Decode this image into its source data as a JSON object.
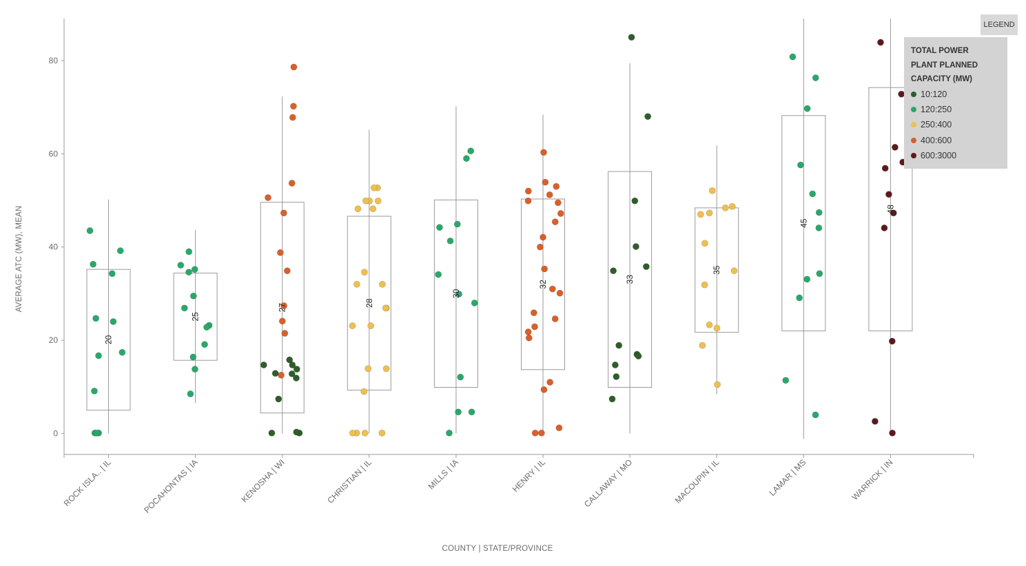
{
  "chart_data": {
    "type": "scatter",
    "subtype": "box-plot-with-jittered-points",
    "xlabel": "COUNTY | STATE/PROVINCE",
    "ylabel": "AVERAGE ATC (MW), MEAN",
    "ylim": [
      -4.5,
      89
    ],
    "yticks": [
      0,
      20,
      40,
      60,
      80
    ],
    "grid": false,
    "legend": {
      "button_label": "LEGEND",
      "title": "TOTAL POWER PLANT PLANNED CAPACITY (MW)",
      "placement": "top-right",
      "items": [
        {
          "key": "10:120",
          "label": "10:120",
          "color": "#2f5e2a"
        },
        {
          "key": "120:250",
          "label": "120:250",
          "color": "#2aa86b"
        },
        {
          "key": "250:400",
          "label": "250:400",
          "color": "#efc04f"
        },
        {
          "key": "400:600",
          "label": "400:600",
          "color": "#d9602a"
        },
        {
          "key": "600:3000",
          "label": "600:3000",
          "color": "#5c1a1f"
        }
      ]
    },
    "categories": [
      {
        "label": "ROCK ISLA.. | IL",
        "mean": "20",
        "box": [
          5,
          35.2
        ],
        "whisker": [
          0,
          50.2
        ],
        "points": [
          {
            "y": 43.5,
            "c": "120:250"
          },
          {
            "y": 39.2,
            "c": "120:250"
          },
          {
            "y": 36.3,
            "c": "120:250"
          },
          {
            "y": 34.3,
            "c": "120:250"
          },
          {
            "y": 24.7,
            "c": "120:250"
          },
          {
            "y": 24,
            "c": "120:250"
          },
          {
            "y": 17.4,
            "c": "120:250"
          },
          {
            "y": 16.7,
            "c": "120:250"
          },
          {
            "y": 9.1,
            "c": "120:250"
          },
          {
            "y": 0.1,
            "c": "120:250"
          },
          {
            "y": 0.1,
            "c": "120:250"
          },
          {
            "y": 0.1,
            "c": "120:250"
          }
        ]
      },
      {
        "label": "POCAHONTAS | IA",
        "mean": "25",
        "box": [
          15.7,
          34.4
        ],
        "whisker": [
          6.5,
          43.7
        ],
        "points": [
          {
            "y": 39,
            "c": "120:250"
          },
          {
            "y": 36.1,
            "c": "120:250"
          },
          {
            "y": 35.2,
            "c": "120:250"
          },
          {
            "y": 34.6,
            "c": "120:250"
          },
          {
            "y": 29.5,
            "c": "120:250"
          },
          {
            "y": 26.9,
            "c": "120:250"
          },
          {
            "y": 23.2,
            "c": "120:250"
          },
          {
            "y": 22.8,
            "c": "120:250"
          },
          {
            "y": 19.1,
            "c": "120:250"
          },
          {
            "y": 16.4,
            "c": "120:250"
          },
          {
            "y": 13.8,
            "c": "120:250"
          },
          {
            "y": 8.5,
            "c": "120:250"
          }
        ]
      },
      {
        "label": "KENOSHA | WI",
        "mean": "27",
        "box": [
          4.4,
          49.6
        ],
        "whisker": [
          0,
          72.3
        ],
        "points": [
          {
            "y": 78.6,
            "c": "400:600"
          },
          {
            "y": 70.2,
            "c": "400:600"
          },
          {
            "y": 67.8,
            "c": "400:600"
          },
          {
            "y": 53.7,
            "c": "400:600"
          },
          {
            "y": 50.6,
            "c": "400:600"
          },
          {
            "y": 47.3,
            "c": "400:600"
          },
          {
            "y": 38.8,
            "c": "400:600"
          },
          {
            "y": 34.9,
            "c": "400:600"
          },
          {
            "y": 27.4,
            "c": "400:600"
          },
          {
            "y": 24.1,
            "c": "400:600"
          },
          {
            "y": 21.5,
            "c": "400:600"
          },
          {
            "y": 12.5,
            "c": "400:600"
          },
          {
            "y": 15.8,
            "c": "10:120"
          },
          {
            "y": 14.7,
            "c": "10:120"
          },
          {
            "y": 14.7,
            "c": "10:120"
          },
          {
            "y": 13.8,
            "c": "10:120"
          },
          {
            "y": 12.9,
            "c": "10:120"
          },
          {
            "y": 12.8,
            "c": "10:120"
          },
          {
            "y": 11.9,
            "c": "10:120"
          },
          {
            "y": 7.4,
            "c": "10:120"
          },
          {
            "y": 0.1,
            "c": "10:120"
          },
          {
            "y": 0.3,
            "c": "10:120"
          },
          {
            "y": 0.1,
            "c": "10:120"
          }
        ]
      },
      {
        "label": "CHRISTIAN | IL",
        "mean": "28",
        "box": [
          9.3,
          46.6
        ],
        "whisker": [
          0,
          65.2
        ],
        "points": [
          {
            "y": 52.7,
            "c": "250:400"
          },
          {
            "y": 52.7,
            "c": "250:400"
          },
          {
            "y": 49.9,
            "c": "250:400"
          },
          {
            "y": 49.9,
            "c": "250:400"
          },
          {
            "y": 49.9,
            "c": "250:400"
          },
          {
            "y": 48.2,
            "c": "250:400"
          },
          {
            "y": 48.2,
            "c": "250:400"
          },
          {
            "y": 34.6,
            "c": "250:400"
          },
          {
            "y": 32,
            "c": "250:400"
          },
          {
            "y": 32,
            "c": "250:400"
          },
          {
            "y": 26.9,
            "c": "250:400"
          },
          {
            "y": 26.9,
            "c": "250:400"
          },
          {
            "y": 23.1,
            "c": "250:400"
          },
          {
            "y": 23.1,
            "c": "250:400"
          },
          {
            "y": 13.9,
            "c": "250:400"
          },
          {
            "y": 13.9,
            "c": "250:400"
          },
          {
            "y": 9,
            "c": "250:400"
          },
          {
            "y": 0.1,
            "c": "250:400"
          },
          {
            "y": 0.1,
            "c": "250:400"
          },
          {
            "y": 0.1,
            "c": "250:400"
          },
          {
            "y": 0.1,
            "c": "250:400"
          }
        ]
      },
      {
        "label": "MILLS | IA",
        "mean": "30",
        "box": [
          9.9,
          50.1
        ],
        "whisker": [
          0,
          70.2
        ],
        "points": [
          {
            "y": 60.6,
            "c": "120:250"
          },
          {
            "y": 59,
            "c": "120:250"
          },
          {
            "y": 44.9,
            "c": "120:250"
          },
          {
            "y": 44.2,
            "c": "120:250"
          },
          {
            "y": 41.3,
            "c": "120:250"
          },
          {
            "y": 34.1,
            "c": "120:250"
          },
          {
            "y": 29.9,
            "c": "120:250"
          },
          {
            "y": 28,
            "c": "120:250"
          },
          {
            "y": 12.1,
            "c": "120:250"
          },
          {
            "y": 4.6,
            "c": "120:250"
          },
          {
            "y": 4.6,
            "c": "120:250"
          },
          {
            "y": 0.1,
            "c": "120:250"
          }
        ]
      },
      {
        "label": "HENRY | IL",
        "mean": "32",
        "box": [
          13.7,
          50.3
        ],
        "whisker": [
          0,
          68.4
        ],
        "points": [
          {
            "y": 60.3,
            "c": "400:600"
          },
          {
            "y": 53.9,
            "c": "400:600"
          },
          {
            "y": 53,
            "c": "400:600"
          },
          {
            "y": 52,
            "c": "400:600"
          },
          {
            "y": 51.2,
            "c": "400:600"
          },
          {
            "y": 49.9,
            "c": "400:600"
          },
          {
            "y": 49.5,
            "c": "400:600"
          },
          {
            "y": 47.2,
            "c": "400:600"
          },
          {
            "y": 45.4,
            "c": "400:600"
          },
          {
            "y": 42.1,
            "c": "400:600"
          },
          {
            "y": 40,
            "c": "400:600"
          },
          {
            "y": 35.3,
            "c": "400:600"
          },
          {
            "y": 31,
            "c": "400:600"
          },
          {
            "y": 30.1,
            "c": "400:600"
          },
          {
            "y": 25.9,
            "c": "400:600"
          },
          {
            "y": 24.6,
            "c": "400:600"
          },
          {
            "y": 22.9,
            "c": "400:600"
          },
          {
            "y": 21.8,
            "c": "400:600"
          },
          {
            "y": 20.5,
            "c": "400:600"
          },
          {
            "y": 11,
            "c": "400:600"
          },
          {
            "y": 9.4,
            "c": "400:600"
          },
          {
            "y": 1.2,
            "c": "400:600"
          },
          {
            "y": 0.1,
            "c": "400:600"
          },
          {
            "y": 0.1,
            "c": "400:600"
          }
        ]
      },
      {
        "label": "CALLAWAY | MO",
        "mean": "33",
        "box": [
          9.9,
          56.2
        ],
        "whisker": [
          0,
          79.4
        ],
        "points": [
          {
            "y": 85,
            "c": "10:120"
          },
          {
            "y": 68,
            "c": "10:120"
          },
          {
            "y": 49.9,
            "c": "10:120"
          },
          {
            "y": 40.1,
            "c": "10:120"
          },
          {
            "y": 35.8,
            "c": "10:120"
          },
          {
            "y": 34.9,
            "c": "10:120"
          },
          {
            "y": 18.9,
            "c": "10:120"
          },
          {
            "y": 17,
            "c": "10:120"
          },
          {
            "y": 16.6,
            "c": "10:120"
          },
          {
            "y": 14.7,
            "c": "10:120"
          },
          {
            "y": 12.2,
            "c": "10:120"
          },
          {
            "y": 7.4,
            "c": "10:120"
          }
        ]
      },
      {
        "label": "MACOUPIN | IL",
        "mean": "35",
        "box": [
          21.7,
          48.4
        ],
        "whisker": [
          8.4,
          61.8
        ],
        "points": [
          {
            "y": 52.1,
            "c": "250:400"
          },
          {
            "y": 48.7,
            "c": "250:400"
          },
          {
            "y": 48.4,
            "c": "250:400"
          },
          {
            "y": 47.3,
            "c": "250:400"
          },
          {
            "y": 47,
            "c": "250:400"
          },
          {
            "y": 40.8,
            "c": "250:400"
          },
          {
            "y": 34.9,
            "c": "250:400"
          },
          {
            "y": 31.9,
            "c": "250:400"
          },
          {
            "y": 23.3,
            "c": "250:400"
          },
          {
            "y": 22.6,
            "c": "250:400"
          },
          {
            "y": 18.9,
            "c": "250:400"
          },
          {
            "y": 10.5,
            "c": "250:400"
          }
        ]
      },
      {
        "label": "LAMAR | MS",
        "mean": "45",
        "box": [
          22,
          68.2
        ],
        "whisker": [
          -1.2,
          89
        ],
        "points": [
          {
            "y": 80.8,
            "c": "120:250"
          },
          {
            "y": 76.3,
            "c": "120:250"
          },
          {
            "y": 69.7,
            "c": "120:250"
          },
          {
            "y": 57.6,
            "c": "120:250"
          },
          {
            "y": 51.4,
            "c": "120:250"
          },
          {
            "y": 47.4,
            "c": "120:250"
          },
          {
            "y": 44.1,
            "c": "120:250"
          },
          {
            "y": 34.3,
            "c": "120:250"
          },
          {
            "y": 33.1,
            "c": "120:250"
          },
          {
            "y": 29.1,
            "c": "120:250"
          },
          {
            "y": 11.4,
            "c": "120:250"
          },
          {
            "y": 4,
            "c": "120:250"
          }
        ]
      },
      {
        "label": "WARRICK | IN",
        "mean": "48",
        "box": [
          22,
          74.2
        ],
        "whisker": [
          0,
          89
        ],
        "points": [
          {
            "y": 83.9,
            "c": "600:3000"
          },
          {
            "y": 76.4,
            "c": "600:3000"
          },
          {
            "y": 72.8,
            "c": "600:3000"
          },
          {
            "y": 61.4,
            "c": "600:3000"
          },
          {
            "y": 58.2,
            "c": "600:3000"
          },
          {
            "y": 56.9,
            "c": "600:3000"
          },
          {
            "y": 51.3,
            "c": "600:3000"
          },
          {
            "y": 47.3,
            "c": "600:3000"
          },
          {
            "y": 44.1,
            "c": "600:3000"
          },
          {
            "y": 19.8,
            "c": "600:3000"
          },
          {
            "y": 2.6,
            "c": "600:3000"
          },
          {
            "y": 0.1,
            "c": "600:3000"
          }
        ]
      }
    ]
  }
}
